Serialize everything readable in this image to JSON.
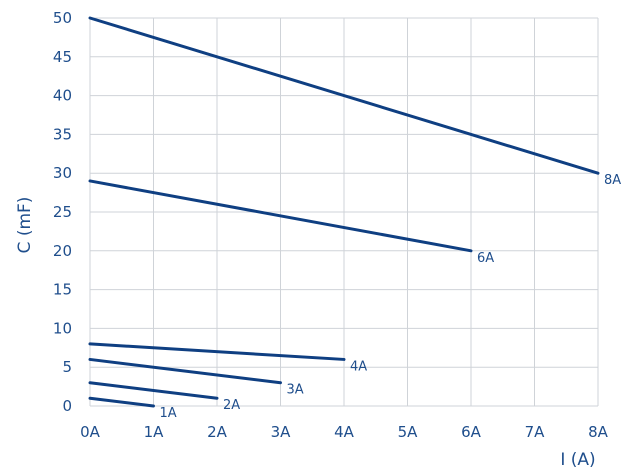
{
  "colors": {
    "line": "#0f3f82",
    "grid": "#cfd3d8",
    "text": "#1f4e8c"
  },
  "chart_data": {
    "type": "line",
    "title": "",
    "xlabel": "I (A)",
    "ylabel": "C (mF)",
    "xlim": [
      0,
      8
    ],
    "ylim": [
      0,
      50
    ],
    "x_ticks": [
      0,
      1,
      2,
      3,
      4,
      5,
      6,
      7,
      8
    ],
    "x_tick_labels": [
      "0A",
      "1A",
      "2A",
      "3A",
      "4A",
      "5A",
      "6A",
      "7A",
      "8A"
    ],
    "y_ticks": [
      0,
      5,
      10,
      15,
      20,
      25,
      30,
      35,
      40,
      45,
      50
    ],
    "y_tick_labels": [
      "0",
      "5",
      "10",
      "15",
      "20",
      "25",
      "30",
      "35",
      "40",
      "45",
      "50"
    ],
    "grid": true,
    "legend": "none",
    "series": [
      {
        "name": "1A",
        "points": [
          [
            0,
            1
          ],
          [
            1,
            0
          ]
        ]
      },
      {
        "name": "2A",
        "points": [
          [
            0,
            3
          ],
          [
            2,
            1
          ]
        ]
      },
      {
        "name": "3A",
        "points": [
          [
            0,
            6
          ],
          [
            3,
            3
          ]
        ]
      },
      {
        "name": "4A",
        "points": [
          [
            0,
            8
          ],
          [
            4,
            6
          ]
        ]
      },
      {
        "name": "6A",
        "points": [
          [
            0,
            29
          ],
          [
            6,
            20
          ]
        ]
      },
      {
        "name": "8A",
        "points": [
          [
            0,
            50
          ],
          [
            8,
            30
          ]
        ]
      }
    ]
  }
}
